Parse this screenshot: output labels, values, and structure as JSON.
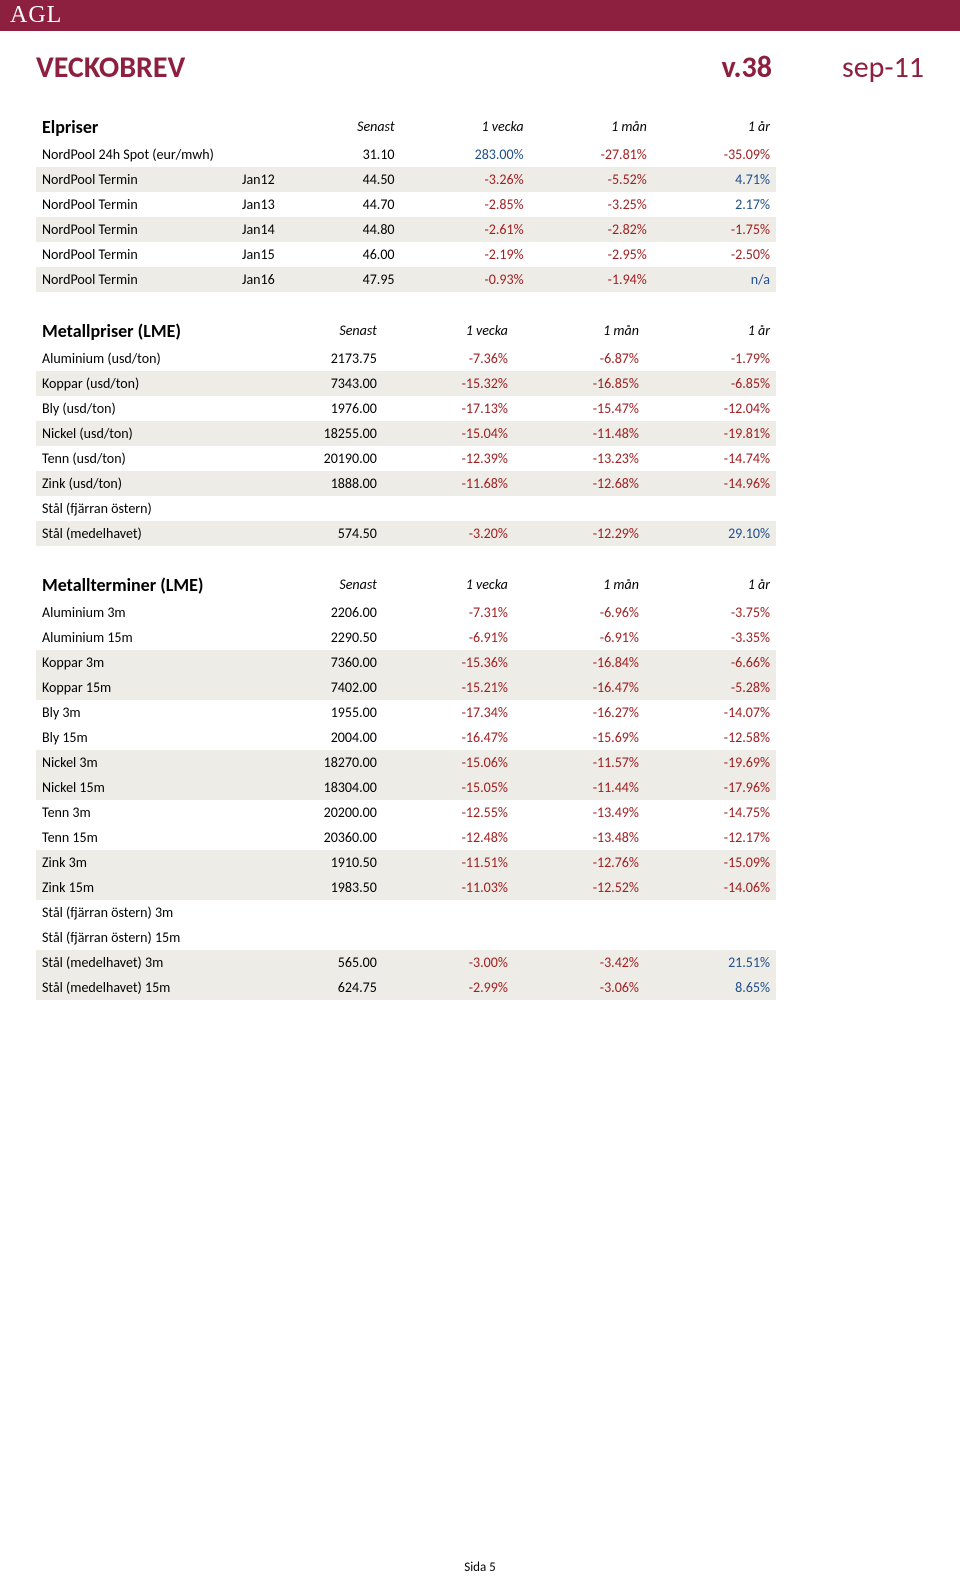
{
  "header_logo": "AGL",
  "title": "VECKOBREV",
  "version": "v.38",
  "date": "sep-11",
  "col_headers": [
    "Senast",
    "1 vecka",
    "1 mån",
    "1 år"
  ],
  "sections": [
    {
      "name": "Elpriser",
      "has_code": true,
      "rows": [
        {
          "shade": false,
          "label": "NordPool 24h Spot (eur/mwh)",
          "code": "",
          "vals": [
            [
              "31.10",
              "blk"
            ],
            [
              "283.00%",
              "pos"
            ],
            [
              "-27.81%",
              "neg"
            ],
            [
              "-35.09%",
              "neg"
            ]
          ]
        },
        {
          "shade": true,
          "label": "NordPool Termin",
          "code": "Jan12",
          "vals": [
            [
              "44.50",
              "blk"
            ],
            [
              "-3.26%",
              "neg"
            ],
            [
              "-5.52%",
              "neg"
            ],
            [
              "4.71%",
              "pos"
            ]
          ]
        },
        {
          "shade": false,
          "label": "NordPool Termin",
          "code": "Jan13",
          "vals": [
            [
              "44.70",
              "blk"
            ],
            [
              "-2.85%",
              "neg"
            ],
            [
              "-3.25%",
              "neg"
            ],
            [
              "2.17%",
              "pos"
            ]
          ]
        },
        {
          "shade": true,
          "label": "NordPool Termin",
          "code": "Jan14",
          "vals": [
            [
              "44.80",
              "blk"
            ],
            [
              "-2.61%",
              "neg"
            ],
            [
              "-2.82%",
              "neg"
            ],
            [
              "-1.75%",
              "neg"
            ]
          ]
        },
        {
          "shade": false,
          "label": "NordPool Termin",
          "code": "Jan15",
          "vals": [
            [
              "46.00",
              "blk"
            ],
            [
              "-2.19%",
              "neg"
            ],
            [
              "-2.95%",
              "neg"
            ],
            [
              "-2.50%",
              "neg"
            ]
          ]
        },
        {
          "shade": true,
          "label": "NordPool Termin",
          "code": "Jan16",
          "vals": [
            [
              "47.95",
              "blk"
            ],
            [
              "-0.93%",
              "neg"
            ],
            [
              "-1.94%",
              "neg"
            ],
            [
              "n/a",
              "pos"
            ]
          ]
        }
      ]
    },
    {
      "name": "Metallpriser (LME)",
      "has_code": false,
      "rows": [
        {
          "shade": false,
          "label": "Aluminium (usd/ton)",
          "vals": [
            [
              "2173.75",
              "blk"
            ],
            [
              "-7.36%",
              "neg"
            ],
            [
              "-6.87%",
              "neg"
            ],
            [
              "-1.79%",
              "neg"
            ]
          ]
        },
        {
          "shade": true,
          "label": "Koppar (usd/ton)",
          "vals": [
            [
              "7343.00",
              "blk"
            ],
            [
              "-15.32%",
              "neg"
            ],
            [
              "-16.85%",
              "neg"
            ],
            [
              "-6.85%",
              "neg"
            ]
          ]
        },
        {
          "shade": false,
          "label": "Bly (usd/ton)",
          "vals": [
            [
              "1976.00",
              "blk"
            ],
            [
              "-17.13%",
              "neg"
            ],
            [
              "-15.47%",
              "neg"
            ],
            [
              "-12.04%",
              "neg"
            ]
          ]
        },
        {
          "shade": true,
          "label": "Nickel (usd/ton)",
          "vals": [
            [
              "18255.00",
              "blk"
            ],
            [
              "-15.04%",
              "neg"
            ],
            [
              "-11.48%",
              "neg"
            ],
            [
              "-19.81%",
              "neg"
            ]
          ]
        },
        {
          "shade": false,
          "label": "Tenn (usd/ton)",
          "vals": [
            [
              "20190.00",
              "blk"
            ],
            [
              "-12.39%",
              "neg"
            ],
            [
              "-13.23%",
              "neg"
            ],
            [
              "-14.74%",
              "neg"
            ]
          ]
        },
        {
          "shade": true,
          "label": "Zink (usd/ton)",
          "vals": [
            [
              "1888.00",
              "blk"
            ],
            [
              "-11.68%",
              "neg"
            ],
            [
              "-12.68%",
              "neg"
            ],
            [
              "-14.96%",
              "neg"
            ]
          ]
        },
        {
          "shade": false,
          "label": "Stål (fjärran östern)",
          "vals": [
            [
              "",
              "blk"
            ],
            [
              "",
              "blk"
            ],
            [
              "",
              "blk"
            ],
            [
              "",
              "blk"
            ]
          ]
        },
        {
          "shade": true,
          "label": "Stål (medelhavet)",
          "vals": [
            [
              "574.50",
              "blk"
            ],
            [
              "-3.20%",
              "neg"
            ],
            [
              "-12.29%",
              "neg"
            ],
            [
              "29.10%",
              "pos"
            ]
          ]
        }
      ]
    },
    {
      "name": "Metallterminer (LME)",
      "has_code": false,
      "rows": [
        {
          "shade": false,
          "label": "Aluminium 3m",
          "vals": [
            [
              "2206.00",
              "blk"
            ],
            [
              "-7.31%",
              "neg"
            ],
            [
              "-6.96%",
              "neg"
            ],
            [
              "-3.75%",
              "neg"
            ]
          ]
        },
        {
          "shade": false,
          "label": "Aluminium 15m",
          "vals": [
            [
              "2290.50",
              "blk"
            ],
            [
              "-6.91%",
              "neg"
            ],
            [
              "-6.91%",
              "neg"
            ],
            [
              "-3.35%",
              "neg"
            ]
          ]
        },
        {
          "shade": true,
          "label": "Koppar 3m",
          "vals": [
            [
              "7360.00",
              "blk"
            ],
            [
              "-15.36%",
              "neg"
            ],
            [
              "-16.84%",
              "neg"
            ],
            [
              "-6.66%",
              "neg"
            ]
          ]
        },
        {
          "shade": true,
          "label": "Koppar 15m",
          "vals": [
            [
              "7402.00",
              "blk"
            ],
            [
              "-15.21%",
              "neg"
            ],
            [
              "-16.47%",
              "neg"
            ],
            [
              "-5.28%",
              "neg"
            ]
          ]
        },
        {
          "shade": false,
          "label": "Bly 3m",
          "vals": [
            [
              "1955.00",
              "blk"
            ],
            [
              "-17.34%",
              "neg"
            ],
            [
              "-16.27%",
              "neg"
            ],
            [
              "-14.07%",
              "neg"
            ]
          ]
        },
        {
          "shade": false,
          "label": "Bly 15m",
          "vals": [
            [
              "2004.00",
              "blk"
            ],
            [
              "-16.47%",
              "neg"
            ],
            [
              "-15.69%",
              "neg"
            ],
            [
              "-12.58%",
              "neg"
            ]
          ]
        },
        {
          "shade": true,
          "label": "Nickel 3m",
          "vals": [
            [
              "18270.00",
              "blk"
            ],
            [
              "-15.06%",
              "neg"
            ],
            [
              "-11.57%",
              "neg"
            ],
            [
              "-19.69%",
              "neg"
            ]
          ]
        },
        {
          "shade": true,
          "label": "Nickel 15m",
          "vals": [
            [
              "18304.00",
              "blk"
            ],
            [
              "-15.05%",
              "neg"
            ],
            [
              "-11.44%",
              "neg"
            ],
            [
              "-17.96%",
              "neg"
            ]
          ]
        },
        {
          "shade": false,
          "label": "Tenn 3m",
          "vals": [
            [
              "20200.00",
              "blk"
            ],
            [
              "-12.55%",
              "neg"
            ],
            [
              "-13.49%",
              "neg"
            ],
            [
              "-14.75%",
              "neg"
            ]
          ]
        },
        {
          "shade": false,
          "label": "Tenn 15m",
          "vals": [
            [
              "20360.00",
              "blk"
            ],
            [
              "-12.48%",
              "neg"
            ],
            [
              "-13.48%",
              "neg"
            ],
            [
              "-12.17%",
              "neg"
            ]
          ]
        },
        {
          "shade": true,
          "label": "Zink 3m",
          "vals": [
            [
              "1910.50",
              "blk"
            ],
            [
              "-11.51%",
              "neg"
            ],
            [
              "-12.76%",
              "neg"
            ],
            [
              "-15.09%",
              "neg"
            ]
          ]
        },
        {
          "shade": true,
          "label": "Zink 15m",
          "vals": [
            [
              "1983.50",
              "blk"
            ],
            [
              "-11.03%",
              "neg"
            ],
            [
              "-12.52%",
              "neg"
            ],
            [
              "-14.06%",
              "neg"
            ]
          ]
        },
        {
          "shade": false,
          "label": "Stål (fjärran östern) 3m",
          "vals": [
            [
              "",
              "blk"
            ],
            [
              "",
              "blk"
            ],
            [
              "",
              "blk"
            ],
            [
              "",
              "blk"
            ]
          ]
        },
        {
          "shade": false,
          "label": "Stål (fjärran östern) 15m",
          "vals": [
            [
              "",
              "blk"
            ],
            [
              "",
              "blk"
            ],
            [
              "",
              "blk"
            ],
            [
              "",
              "blk"
            ]
          ]
        },
        {
          "shade": true,
          "label": "Stål (medelhavet) 3m",
          "vals": [
            [
              "565.00",
              "blk"
            ],
            [
              "-3.00%",
              "neg"
            ],
            [
              "-3.42%",
              "neg"
            ],
            [
              "21.51%",
              "pos"
            ]
          ]
        },
        {
          "shade": true,
          "label": "Stål (medelhavet) 15m",
          "vals": [
            [
              "624.75",
              "blk"
            ],
            [
              "-2.99%",
              "neg"
            ],
            [
              "-3.06%",
              "neg"
            ],
            [
              "8.65%",
              "pos"
            ]
          ]
        }
      ]
    }
  ],
  "footer": "Sida 5"
}
